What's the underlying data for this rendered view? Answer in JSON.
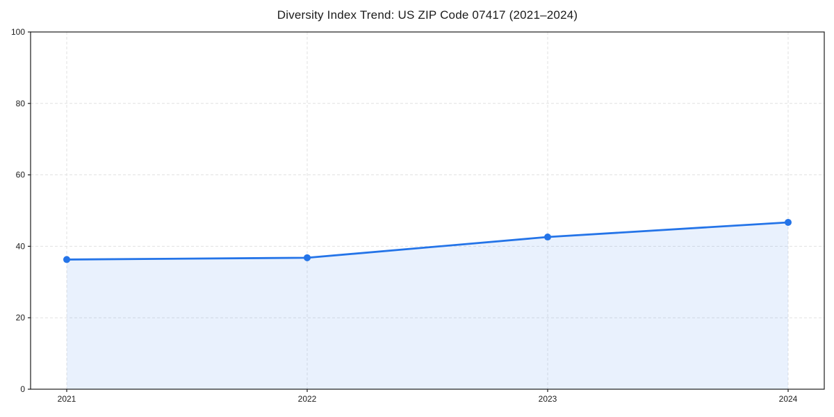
{
  "chart_data": {
    "type": "area",
    "title": "Diversity Index Trend: US ZIP Code 07417 (2021–2024)",
    "categories": [
      "2021",
      "2022",
      "2023",
      "2024"
    ],
    "series": [
      {
        "name": "Diversity Index",
        "values": [
          36.3,
          36.8,
          42.6,
          46.7
        ]
      }
    ],
    "xlabel": "",
    "ylabel": "",
    "ylim": [
      0,
      100
    ],
    "yticks": [
      0,
      20,
      40,
      60,
      80,
      100
    ],
    "grid": true,
    "grid_style": "dashed",
    "legend": "none",
    "line_color": "#2474e8",
    "marker_color": "#2474e8",
    "fill_color": "#2474e8",
    "fill_opacity": 0.1,
    "grid_color": "#e1e1e1",
    "axis_color": "#1a1a1a",
    "background_color": "#ffffff"
  }
}
